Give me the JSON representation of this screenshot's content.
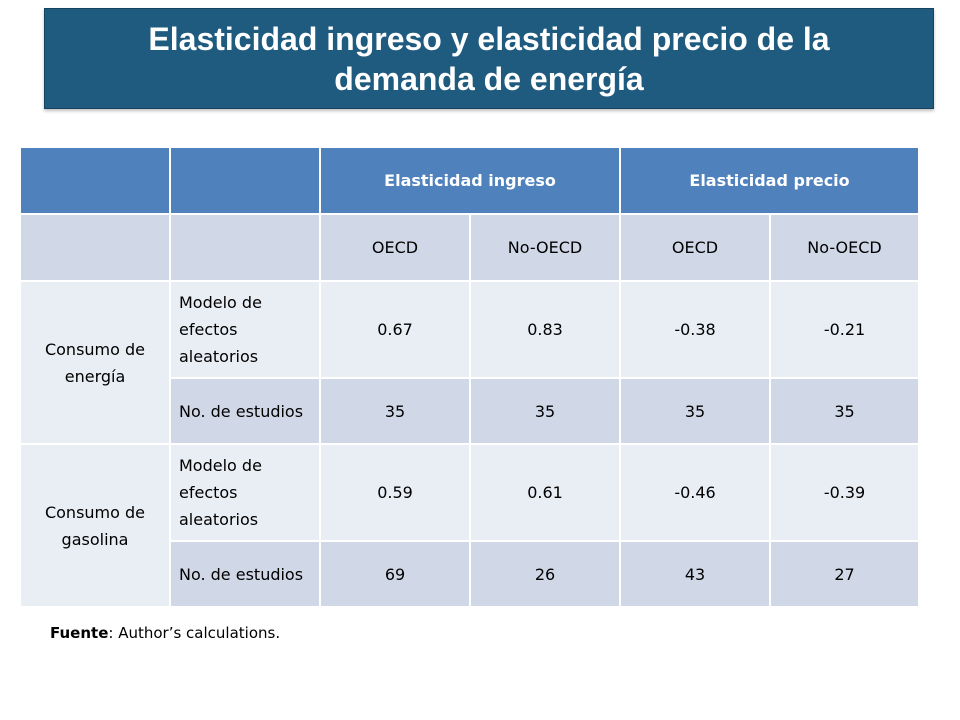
{
  "title": "Elasticidad ingreso y elasticidad precio de la demanda de energía",
  "table": {
    "group_headers": {
      "income": "Elasticidad ingreso",
      "price": "Elasticidad precio"
    },
    "sub_headers": [
      "OECD",
      "No-OECD",
      "OECD",
      "No-OECD"
    ],
    "groups": [
      {
        "label": "Consumo de energía",
        "rows": [
          {
            "label": "Modelo de efectos aleatorios",
            "values": [
              "0.67",
              "0.83",
              "-0.38",
              "-0.21"
            ]
          },
          {
            "label": "No. de estudios",
            "values": [
              "35",
              "35",
              "35",
              "35"
            ]
          }
        ]
      },
      {
        "label": "Consumo de gasolina",
        "rows": [
          {
            "label": "Modelo de efectos aleatorios",
            "values": [
              "0.59",
              "0.61",
              "-0.46",
              "-0.39"
            ]
          },
          {
            "label": "No. de estudios",
            "values": [
              "69",
              "26",
              "43",
              "27"
            ]
          }
        ]
      }
    ]
  },
  "source": {
    "label": "Fuente",
    "text": ": Author’s calculations."
  },
  "colors": {
    "title_bg": "#1f5a7f",
    "header_bg": "#4f81bd",
    "band_dark": "#d0d8e8",
    "band_light": "#e9edf4"
  }
}
